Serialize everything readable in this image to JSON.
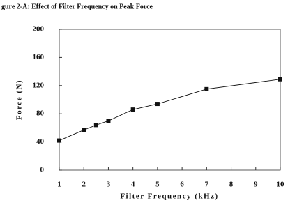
{
  "chart_data": {
    "type": "line",
    "title": "gure 2-A:  Effect of Filter Frequency on Peak Force",
    "x_label": "Filter Frequency (kHz)",
    "y_label": "Force (N)",
    "x": [
      1,
      2,
      2.5,
      3,
      4,
      5,
      7,
      10
    ],
    "series": [
      {
        "color": "#111111",
        "values": [
          42,
          57,
          64,
          70,
          86,
          94,
          115,
          129
        ]
      }
    ],
    "xlim": [
      1,
      10
    ],
    "xticks": [
      1,
      2,
      3,
      4,
      5,
      6,
      7,
      8,
      9,
      10
    ],
    "ylim": [
      0,
      200
    ],
    "yticks": [
      0,
      40,
      80,
      120,
      160,
      200
    ],
    "grid": false
  }
}
